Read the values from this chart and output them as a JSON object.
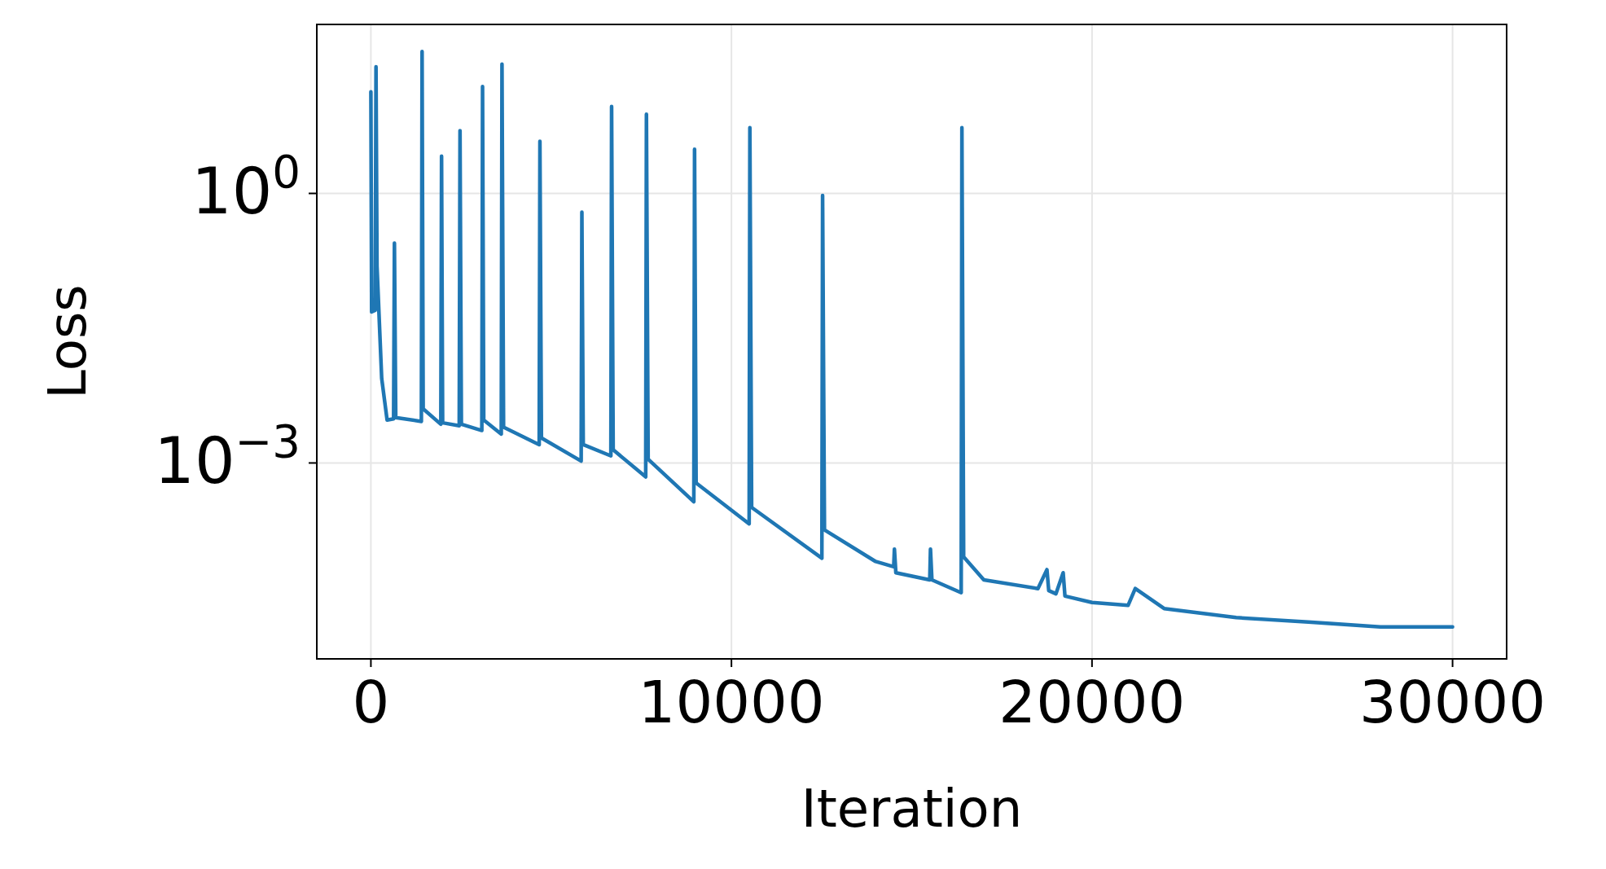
{
  "chart_data": {
    "type": "line",
    "xlabel": "Iteration",
    "ylabel": "Loss",
    "log": "y",
    "grid": true,
    "xlim": [
      -1500,
      31500
    ],
    "xticks": [
      0,
      10000,
      20000,
      30000
    ],
    "ylim": [
      6.6e-06,
      76
    ],
    "yticks": [
      {
        "value": 1,
        "label": "10$^{0}$"
      },
      {
        "value": 0.001,
        "label": "10$^{−3}$"
      }
    ],
    "series": [
      {
        "color": "#1f77b4",
        "x": [
          0,
          20,
          120,
          142,
          170,
          300,
          450,
          630,
          653,
          690,
          1400,
          1420,
          1450,
          1940,
          1960,
          1990,
          2450,
          2472,
          2510,
          3077,
          3097,
          3130,
          3616,
          3636,
          3680,
          4668,
          4688,
          4730,
          5832,
          5852,
          5890,
          6656,
          6676,
          6720,
          7622,
          7642,
          7690,
          8957,
          8977,
          9020,
          10491,
          10511,
          10560,
          12508,
          12528,
          12580,
          14000,
          14500,
          14520,
          14560,
          15500,
          15520,
          15560,
          16372,
          16392,
          16440,
          17000,
          18500,
          18750,
          18800,
          19000,
          19200,
          19250,
          20000,
          21000,
          21200,
          22000,
          24000,
          26000,
          28000,
          30000
        ],
        "values": [
          13.5,
          0.048,
          0.05,
          25.7,
          0.155,
          0.0087,
          0.003,
          0.0031,
          0.28,
          0.0032,
          0.0029,
          38,
          0.004,
          0.0027,
          2.6,
          0.0028,
          0.0026,
          5,
          0.0027,
          0.0023,
          15.5,
          0.003,
          0.0021,
          27.5,
          0.0025,
          0.0016,
          3.8,
          0.0019,
          0.00105,
          0.62,
          0.0016,
          0.0012,
          9.3,
          0.0014,
          0.0007,
          7.6,
          0.0011,
          0.00037,
          3.1,
          0.0006,
          0.00021,
          5.4,
          0.00032,
          8.7e-05,
          0.95,
          0.00018,
          8e-05,
          7e-05,
          0.00011,
          6e-05,
          5e-05,
          0.00011,
          5e-05,
          3.6e-05,
          5.4,
          9e-05,
          5e-05,
          4e-05,
          6.5e-05,
          3.8e-05,
          3.5e-05,
          6e-05,
          3.3e-05,
          2.8e-05,
          2.6e-05,
          4e-05,
          2.4e-05,
          1.9e-05,
          1.7e-05,
          1.5e-05,
          1.5e-05
        ]
      }
    ]
  }
}
